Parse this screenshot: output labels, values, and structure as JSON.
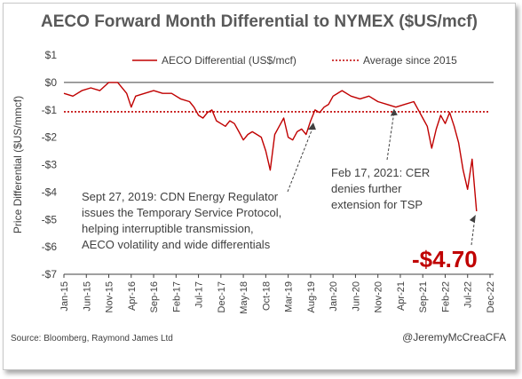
{
  "chart_data": {
    "type": "line",
    "title": "AECO Forward Month Differential to NYMEX ($US/mcf)",
    "ylabel": "Price Differential ($US/mmcf)",
    "xlabel": "",
    "ylim": [
      -7,
      1
    ],
    "y_ticks": [
      1,
      0,
      -1,
      -2,
      -3,
      -4,
      -5,
      -6,
      -7
    ],
    "y_tick_labels": [
      "$1",
      "$0",
      "-$1",
      "-$2",
      "-$3",
      "-$4",
      "-$5",
      "-$6",
      "-$7"
    ],
    "x_range": [
      "2015-01",
      "2022-12"
    ],
    "x_ticks": [
      "Jan-15",
      "Jun-15",
      "Nov-15",
      "Apr-16",
      "Sep-16",
      "Feb-17",
      "Jul-17",
      "Dec-17",
      "May-18",
      "Oct-18",
      "Mar-19",
      "Aug-19",
      "Jan-20",
      "Jun-20",
      "Nov-20",
      "Apr-21",
      "Sep-21",
      "Feb-22",
      "Jul-22",
      "Dec-22"
    ],
    "grid": false,
    "legend_position": "top",
    "colors": {
      "series": "#c00000",
      "average": "#c00000",
      "callout": "#c00000"
    },
    "series": [
      {
        "name": "AECO Differential (US$/mcf)",
        "style": "solid",
        "x": [
          "2015-01",
          "2015-03",
          "2015-05",
          "2015-07",
          "2015-09",
          "2015-11",
          "2016-01",
          "2016-03",
          "2016-04",
          "2016-05",
          "2016-07",
          "2016-09",
          "2016-11",
          "2017-01",
          "2017-03",
          "2017-05",
          "2017-06",
          "2017-07",
          "2017-08",
          "2017-09",
          "2017-10",
          "2017-11",
          "2017-12",
          "2018-01",
          "2018-02",
          "2018-03",
          "2018-04",
          "2018-05",
          "2018-06",
          "2018-07",
          "2018-08",
          "2018-09",
          "2018-10",
          "2018-11",
          "2018-12",
          "2019-01",
          "2019-02",
          "2019-03",
          "2019-04",
          "2019-05",
          "2019-06",
          "2019-07",
          "2019-08",
          "2019-09",
          "2019-10",
          "2019-11",
          "2019-12",
          "2020-01",
          "2020-03",
          "2020-05",
          "2020-07",
          "2020-09",
          "2020-11",
          "2021-01",
          "2021-03",
          "2021-05",
          "2021-07",
          "2021-08",
          "2021-09",
          "2021-10",
          "2021-11",
          "2021-12",
          "2022-01",
          "2022-02",
          "2022-03",
          "2022-04",
          "2022-05",
          "2022-06",
          "2022-07",
          "2022-08",
          "2022-09"
        ],
        "y": [
          -0.4,
          -0.5,
          -0.3,
          -0.2,
          -0.3,
          0.0,
          0.0,
          -0.4,
          -0.9,
          -0.5,
          -0.4,
          -0.3,
          -0.4,
          -0.4,
          -0.6,
          -0.7,
          -0.9,
          -1.2,
          -1.3,
          -1.1,
          -1.0,
          -1.4,
          -1.5,
          -1.6,
          -1.4,
          -1.5,
          -1.8,
          -2.1,
          -1.9,
          -1.8,
          -1.9,
          -2.0,
          -2.5,
          -3.2,
          -1.9,
          -1.6,
          -1.3,
          -2.0,
          -2.1,
          -1.8,
          -1.7,
          -1.9,
          -1.4,
          -1.0,
          -1.1,
          -0.9,
          -0.8,
          -0.5,
          -0.3,
          -0.5,
          -0.6,
          -0.5,
          -0.7,
          -0.8,
          -0.9,
          -0.8,
          -0.7,
          -1.0,
          -1.3,
          -1.6,
          -2.4,
          -1.7,
          -1.2,
          -1.5,
          -1.1,
          -1.6,
          -2.2,
          -3.2,
          -3.9,
          -2.8,
          -4.7
        ]
      },
      {
        "name": "Average since 2015",
        "style": "dotted",
        "y_constant": -1.07
      }
    ],
    "annotations": [
      {
        "lines": [
          "Sept 27, 2019: CDN Energy Regulator",
          "issues the Temporary Service Protocol,",
          "helping interruptible transmission,",
          "AECO volatility and wide differentials"
        ],
        "points_to": {
          "x": "2019-09",
          "y": -1.4
        }
      },
      {
        "lines": [
          "Feb 17, 2021: CER",
          "denies further",
          "extension for TSP"
        ],
        "points_to": {
          "x": "2021-02",
          "y": -0.9
        }
      },
      {
        "text": "-$4.70",
        "points_to": {
          "x": "2022-09",
          "y": -4.7
        }
      }
    ],
    "source": "Source: Bloomberg, Raymond James Ltd",
    "handle": "@JeremyMcCreaCFA"
  }
}
